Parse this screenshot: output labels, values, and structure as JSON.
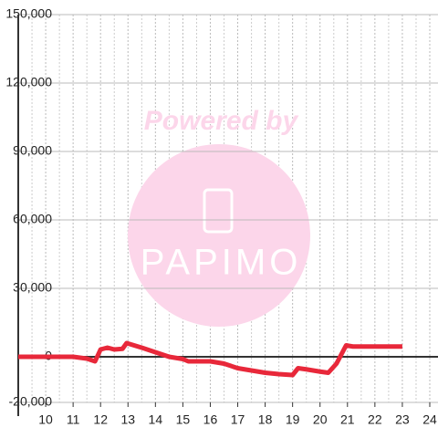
{
  "chart_data": {
    "type": "line",
    "watermark": {
      "caption": "Powered by",
      "logo": "PAPIMO"
    },
    "x": [
      9,
      11,
      11.5,
      11.8,
      12,
      12.25,
      12.5,
      12.8,
      12.95,
      13.5,
      14,
      14.5,
      15,
      15.2,
      16,
      16.5,
      17,
      17.5,
      18,
      18.5,
      19,
      19.2,
      19.5,
      20,
      20.3,
      20.6,
      20.95,
      21.2,
      22,
      23
    ],
    "series": [
      {
        "color": "#e8283a",
        "values": [
          0,
          0,
          -800,
          -2000,
          3200,
          4000,
          3200,
          3500,
          6000,
          4000,
          2000,
          0,
          -1000,
          -2000,
          -2000,
          -3000,
          -5000,
          -6000,
          -7000,
          -7600,
          -8000,
          -5000,
          -5500,
          -6500,
          -7000,
          -3000,
          5000,
          4500,
          4500,
          4500
        ]
      }
    ],
    "xlim": [
      9,
      24.3
    ],
    "ylim": [
      -20000,
      150000
    ],
    "xticks": [
      10,
      11,
      12,
      13,
      14,
      15,
      16,
      17,
      18,
      19,
      20,
      21,
      22,
      23,
      24
    ],
    "yticks": [
      {
        "value": -20000,
        "label": "-20,000"
      },
      0,
      {
        "value": 30000,
        "label": "30,000"
      },
      {
        "value": 60000,
        "label": "60,000"
      },
      {
        "value": 90000,
        "label": "90,000"
      },
      {
        "value": 120000,
        "label": "120,000"
      },
      {
        "value": 150000,
        "label": "150,000"
      }
    ],
    "grid": true
  }
}
